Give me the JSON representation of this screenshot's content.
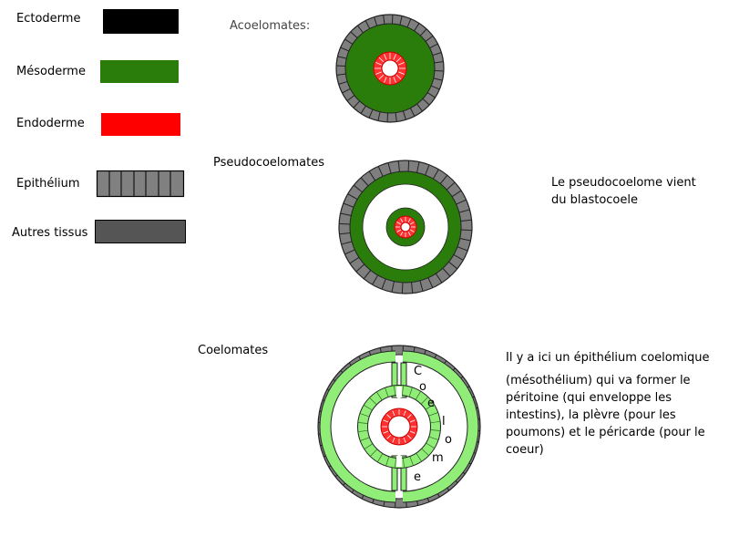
{
  "legend": {
    "items": [
      {
        "label": "Ectoderme",
        "color": "#000000"
      },
      {
        "label": "Mésoderme",
        "color": "#2b7d0b"
      },
      {
        "label": "Endoderme",
        "color": "#ff0000"
      },
      {
        "label": "Epithélium",
        "color": "#808080"
      },
      {
        "label": "Autres tissus",
        "color": "#555555"
      }
    ]
  },
  "diagrams": {
    "acoelomates": {
      "label": "Acoelomates:"
    },
    "pseudocoelomates": {
      "label": "Pseudocoelomates",
      "note_lines": [
        "Le pseudocoelome vient",
        "du blastocoele"
      ]
    },
    "coelomates": {
      "label": "Coelomates",
      "cavity_letters": [
        "C",
        "o",
        "e",
        "l",
        "o",
        "m",
        "e"
      ],
      "note_lines": [
        "Il y a ici un épithélium coelomique",
        "(mésothélium) qui va former le",
        "péritoine (qui enveloppe les",
        "intestins), la plèvre (pour les",
        "poumons) et le péricarde (pour le",
        "coeur)"
      ]
    }
  },
  "colors": {
    "ectoderm_epithelium": "#7f7f7f",
    "mesoderm": "#2b7d0b",
    "endoderm": "#ff3030",
    "coelomic_epithelium": "#90ee78",
    "outline": "#222222"
  }
}
